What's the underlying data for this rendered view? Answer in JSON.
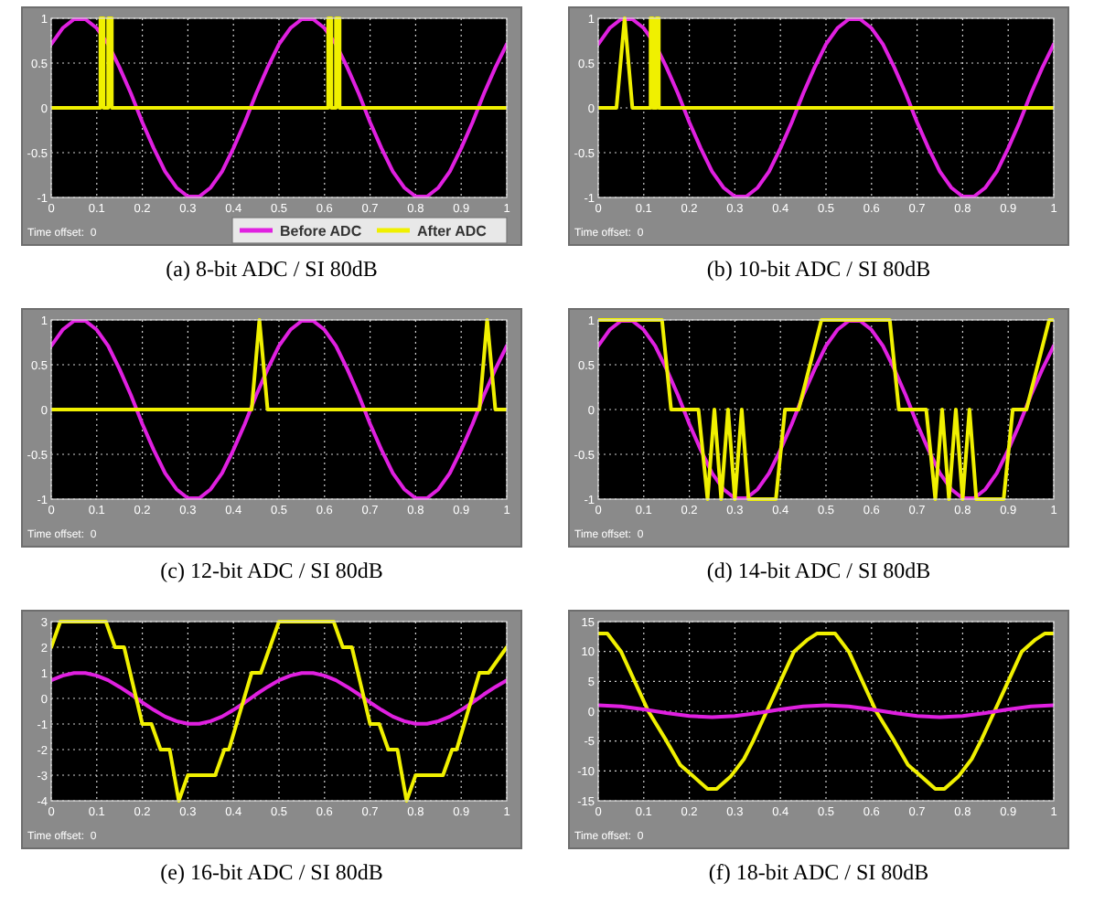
{
  "chart_data": [
    {
      "type": "line",
      "title": "(a) 8-bit ADC / SI 80dB",
      "annotations": [
        "Time offset:  0"
      ],
      "xlim": [
        0,
        1
      ],
      "xticks": [
        0,
        0.1,
        0.2,
        0.3,
        0.4,
        0.5,
        0.6,
        0.7,
        0.8,
        0.9,
        1
      ],
      "ylim": [
        -1,
        1
      ],
      "yticks": [
        -1,
        -0.5,
        0,
        0.5,
        1
      ],
      "grid": true,
      "legend": "bottom right",
      "series": [
        {
          "name": "Before ADC",
          "color": "#e020e0",
          "x": [
            0,
            0.025,
            0.05,
            0.075,
            0.1,
            0.125,
            0.15,
            0.175,
            0.2,
            0.225,
            0.25,
            0.275,
            0.3,
            0.325,
            0.35,
            0.375,
            0.4,
            0.425,
            0.45,
            0.475,
            0.5,
            0.525,
            0.55,
            0.575,
            0.6,
            0.625,
            0.65,
            0.675,
            0.7,
            0.725,
            0.75,
            0.775,
            0.8,
            0.825,
            0.85,
            0.875,
            0.9,
            0.925,
            0.95,
            0.975,
            1
          ],
          "values": [
            0.71,
            0.89,
            0.99,
            0.99,
            0.89,
            0.71,
            0.45,
            0.16,
            -0.16,
            -0.45,
            -0.71,
            -0.89,
            -0.99,
            -0.99,
            -0.89,
            -0.71,
            -0.45,
            -0.16,
            0.16,
            0.45,
            0.71,
            0.89,
            0.99,
            0.99,
            0.89,
            0.71,
            0.45,
            0.16,
            -0.16,
            -0.45,
            -0.71,
            -0.89,
            -0.99,
            -0.99,
            -0.89,
            -0.71,
            -0.45,
            -0.16,
            0.16,
            0.45,
            0.71
          ]
        },
        {
          "name": "After ADC",
          "color": "#f0f000",
          "x": [
            0,
            0.108,
            0.108,
            0.115,
            0.115,
            0.125,
            0.125,
            0.133,
            0.133,
            0.608,
            0.608,
            0.615,
            0.615,
            0.625,
            0.625,
            0.633,
            0.633,
            1
          ],
          "values": [
            0,
            0,
            1,
            1,
            0,
            0,
            1,
            1,
            0,
            0,
            1,
            1,
            0,
            0,
            1,
            1,
            0,
            0
          ]
        }
      ]
    },
    {
      "type": "line",
      "title": "(b) 10-bit ADC / SI 80dB",
      "annotations": [
        "Time offset:  0"
      ],
      "xlim": [
        0,
        1
      ],
      "xticks": [
        0,
        0.1,
        0.2,
        0.3,
        0.4,
        0.5,
        0.6,
        0.7,
        0.8,
        0.9,
        1
      ],
      "ylim": [
        -1,
        1
      ],
      "yticks": [
        -1,
        -0.5,
        0,
        0.5,
        1
      ],
      "grid": true,
      "series": [
        {
          "color": "#e020e0",
          "x": [
            0,
            0.025,
            0.05,
            0.075,
            0.1,
            0.125,
            0.15,
            0.175,
            0.2,
            0.225,
            0.25,
            0.275,
            0.3,
            0.325,
            0.35,
            0.375,
            0.4,
            0.425,
            0.45,
            0.475,
            0.5,
            0.525,
            0.55,
            0.575,
            0.6,
            0.625,
            0.65,
            0.675,
            0.7,
            0.725,
            0.75,
            0.775,
            0.8,
            0.825,
            0.85,
            0.875,
            0.9,
            0.925,
            0.95,
            0.975,
            1
          ],
          "values": [
            0.71,
            0.89,
            0.99,
            0.99,
            0.89,
            0.71,
            0.45,
            0.16,
            -0.16,
            -0.45,
            -0.71,
            -0.89,
            -0.99,
            -0.99,
            -0.89,
            -0.71,
            -0.45,
            -0.16,
            0.16,
            0.45,
            0.71,
            0.89,
            0.99,
            0.99,
            0.89,
            0.71,
            0.45,
            0.16,
            -0.16,
            -0.45,
            -0.71,
            -0.89,
            -0.99,
            -0.99,
            -0.89,
            -0.71,
            -0.45,
            -0.16,
            0.16,
            0.45,
            0.71
          ]
        },
        {
          "color": "#f0f000",
          "x": [
            0,
            0.04,
            0.058,
            0.075,
            0.115,
            0.115,
            0.12,
            0.12,
            0.128,
            0.128,
            0.133,
            0.133,
            1
          ],
          "values": [
            0,
            0,
            1,
            0,
            0,
            1,
            1,
            0,
            0,
            1,
            1,
            0,
            0
          ]
        }
      ]
    },
    {
      "type": "line",
      "title": "(c) 12-bit ADC / SI 80dB",
      "annotations": [
        "Time offset:  0"
      ],
      "xlim": [
        0,
        1
      ],
      "xticks": [
        0,
        0.1,
        0.2,
        0.3,
        0.4,
        0.5,
        0.6,
        0.7,
        0.8,
        0.9,
        1
      ],
      "ylim": [
        -1,
        1
      ],
      "yticks": [
        -1,
        -0.5,
        0,
        0.5,
        1
      ],
      "grid": true,
      "series": [
        {
          "color": "#e020e0",
          "x": [
            0,
            0.025,
            0.05,
            0.075,
            0.1,
            0.125,
            0.15,
            0.175,
            0.2,
            0.225,
            0.25,
            0.275,
            0.3,
            0.325,
            0.35,
            0.375,
            0.4,
            0.425,
            0.45,
            0.475,
            0.5,
            0.525,
            0.55,
            0.575,
            0.6,
            0.625,
            0.65,
            0.675,
            0.7,
            0.725,
            0.75,
            0.775,
            0.8,
            0.825,
            0.85,
            0.875,
            0.9,
            0.925,
            0.95,
            0.975,
            1
          ],
          "values": [
            0.71,
            0.89,
            0.99,
            0.99,
            0.89,
            0.71,
            0.45,
            0.16,
            -0.16,
            -0.45,
            -0.71,
            -0.89,
            -0.99,
            -0.99,
            -0.89,
            -0.71,
            -0.45,
            -0.16,
            0.16,
            0.45,
            0.71,
            0.89,
            0.99,
            0.99,
            0.89,
            0.71,
            0.45,
            0.16,
            -0.16,
            -0.45,
            -0.71,
            -0.89,
            -0.99,
            -0.99,
            -0.89,
            -0.71,
            -0.45,
            -0.16,
            0.16,
            0.45,
            0.71
          ]
        },
        {
          "color": "#f0f000",
          "x": [
            0,
            0.44,
            0.457,
            0.475,
            0.94,
            0.957,
            0.975,
            1
          ],
          "values": [
            0,
            0,
            1,
            0,
            0,
            1,
            0,
            0
          ]
        }
      ]
    },
    {
      "type": "line",
      "title": "(d) 14-bit ADC / SI 80dB",
      "annotations": [
        "Time offset:  0"
      ],
      "xlim": [
        0,
        1
      ],
      "xticks": [
        0,
        0.1,
        0.2,
        0.3,
        0.4,
        0.5,
        0.6,
        0.7,
        0.8,
        0.9,
        1
      ],
      "ylim": [
        -1,
        1
      ],
      "yticks": [
        -1,
        -0.5,
        0,
        0.5,
        1
      ],
      "grid": true,
      "series": [
        {
          "color": "#e020e0",
          "x": [
            0,
            0.025,
            0.05,
            0.075,
            0.1,
            0.125,
            0.15,
            0.175,
            0.2,
            0.225,
            0.25,
            0.275,
            0.3,
            0.325,
            0.35,
            0.375,
            0.4,
            0.425,
            0.45,
            0.475,
            0.5,
            0.525,
            0.55,
            0.575,
            0.6,
            0.625,
            0.65,
            0.675,
            0.7,
            0.725,
            0.75,
            0.775,
            0.8,
            0.825,
            0.85,
            0.875,
            0.9,
            0.925,
            0.95,
            0.975,
            1
          ],
          "values": [
            0.71,
            0.89,
            0.99,
            0.99,
            0.89,
            0.71,
            0.45,
            0.16,
            -0.16,
            -0.45,
            -0.71,
            -0.89,
            -0.99,
            -0.99,
            -0.89,
            -0.71,
            -0.45,
            -0.16,
            0.16,
            0.45,
            0.71,
            0.89,
            0.99,
            0.99,
            0.89,
            0.71,
            0.45,
            0.16,
            -0.16,
            -0.45,
            -0.71,
            -0.89,
            -0.99,
            -0.99,
            -0.89,
            -0.71,
            -0.45,
            -0.16,
            0.16,
            0.45,
            0.71
          ]
        },
        {
          "color": "#f0f000",
          "x": [
            0,
            0.14,
            0.16,
            0.22,
            0.24,
            0.255,
            0.27,
            0.285,
            0.3,
            0.315,
            0.33,
            0.35,
            0.39,
            0.41,
            0.44,
            0.49,
            0.64,
            0.66,
            0.72,
            0.74,
            0.755,
            0.77,
            0.785,
            0.8,
            0.815,
            0.83,
            0.85,
            0.89,
            0.91,
            0.94,
            0.99,
            1
          ],
          "values": [
            1,
            1,
            0,
            0,
            -1,
            0,
            -1,
            0,
            -1,
            0,
            -1,
            -1,
            -1,
            0,
            0,
            1,
            1,
            0,
            0,
            -1,
            0,
            -1,
            0,
            -1,
            0,
            -1,
            -1,
            -1,
            0,
            0,
            1,
            1
          ]
        }
      ]
    },
    {
      "type": "line",
      "title": "(e) 16-bit ADC / SI 80dB",
      "annotations": [
        "Time offset:  0"
      ],
      "xlim": [
        0,
        1
      ],
      "xticks": [
        0,
        0.1,
        0.2,
        0.3,
        0.4,
        0.5,
        0.6,
        0.7,
        0.8,
        0.9,
        1
      ],
      "ylim": [
        -4,
        3
      ],
      "yticks": [
        -4,
        -3,
        -2,
        -1,
        0,
        1,
        2,
        3
      ],
      "grid": true,
      "series": [
        {
          "color": "#e020e0",
          "x": [
            0,
            0.025,
            0.05,
            0.075,
            0.1,
            0.125,
            0.15,
            0.175,
            0.2,
            0.225,
            0.25,
            0.275,
            0.3,
            0.325,
            0.35,
            0.375,
            0.4,
            0.425,
            0.45,
            0.475,
            0.5,
            0.525,
            0.55,
            0.575,
            0.6,
            0.625,
            0.65,
            0.675,
            0.7,
            0.725,
            0.75,
            0.775,
            0.8,
            0.825,
            0.85,
            0.875,
            0.9,
            0.925,
            0.95,
            0.975,
            1
          ],
          "values": [
            0.71,
            0.89,
            0.99,
            0.99,
            0.89,
            0.71,
            0.45,
            0.16,
            -0.16,
            -0.45,
            -0.71,
            -0.89,
            -0.99,
            -0.99,
            -0.89,
            -0.71,
            -0.45,
            -0.16,
            0.16,
            0.45,
            0.71,
            0.89,
            0.99,
            0.99,
            0.89,
            0.71,
            0.45,
            0.16,
            -0.16,
            -0.45,
            -0.71,
            -0.89,
            -0.99,
            -0.99,
            -0.89,
            -0.71,
            -0.45,
            -0.16,
            0.16,
            0.45,
            0.71
          ]
        },
        {
          "color": "#f0f000",
          "x": [
            0,
            0.02,
            0.12,
            0.14,
            0.16,
            0.2,
            0.22,
            0.24,
            0.26,
            0.28,
            0.3,
            0.36,
            0.38,
            0.39,
            0.44,
            0.46,
            0.5,
            0.62,
            0.64,
            0.66,
            0.7,
            0.72,
            0.74,
            0.76,
            0.78,
            0.8,
            0.86,
            0.88,
            0.89,
            0.94,
            0.96,
            1
          ],
          "values": [
            2,
            3,
            3,
            2,
            2,
            -1,
            -1,
            -2,
            -2,
            -4,
            -3,
            -3,
            -2,
            -2,
            1,
            1,
            3,
            3,
            2,
            2,
            -1,
            -1,
            -2,
            -2,
            -4,
            -3,
            -3,
            -2,
            -2,
            1,
            1,
            2
          ]
        }
      ]
    },
    {
      "type": "line",
      "title": "(f) 18-bit ADC / SI 80dB",
      "annotations": [
        "Time offset:  0"
      ],
      "xlim": [
        0,
        1
      ],
      "xticks": [
        0,
        0.1,
        0.2,
        0.3,
        0.4,
        0.5,
        0.6,
        0.7,
        0.8,
        0.9,
        1
      ],
      "ylim": [
        -15,
        15
      ],
      "yticks": [
        -15,
        -10,
        -5,
        0,
        5,
        10,
        15
      ],
      "grid": true,
      "series": [
        {
          "color": "#f0f000",
          "x": [
            0,
            0.02,
            0.05,
            0.08,
            0.11,
            0.15,
            0.18,
            0.21,
            0.24,
            0.26,
            0.29,
            0.32,
            0.34,
            0.37,
            0.4,
            0.43,
            0.46,
            0.48,
            0.52,
            0.55,
            0.58,
            0.61,
            0.65,
            0.68,
            0.71,
            0.74,
            0.76,
            0.79,
            0.82,
            0.84,
            0.87,
            0.9,
            0.93,
            0.96,
            0.98,
            1
          ],
          "values": [
            13,
            13,
            10,
            5,
            0,
            -5,
            -9,
            -11,
            -13,
            -13,
            -11,
            -8,
            -5,
            0,
            5,
            10,
            12,
            13,
            13,
            10,
            5,
            0,
            -5,
            -9,
            -11,
            -13,
            -13,
            -11,
            -8,
            -5,
            0,
            5,
            10,
            12,
            13,
            13
          ]
        },
        {
          "color": "#e020e0",
          "x": [
            0,
            0.05,
            0.1,
            0.15,
            0.2,
            0.25,
            0.3,
            0.35,
            0.4,
            0.45,
            0.5,
            0.55,
            0.6,
            0.65,
            0.7,
            0.75,
            0.8,
            0.85,
            0.9,
            0.95,
            1
          ],
          "values": [
            1,
            0.8,
            0.3,
            -0.3,
            -0.8,
            -1,
            -0.8,
            -0.3,
            0.3,
            0.8,
            1,
            0.8,
            0.3,
            -0.3,
            -0.8,
            -1,
            -0.8,
            -0.3,
            0.3,
            0.8,
            1
          ]
        }
      ]
    }
  ]
}
